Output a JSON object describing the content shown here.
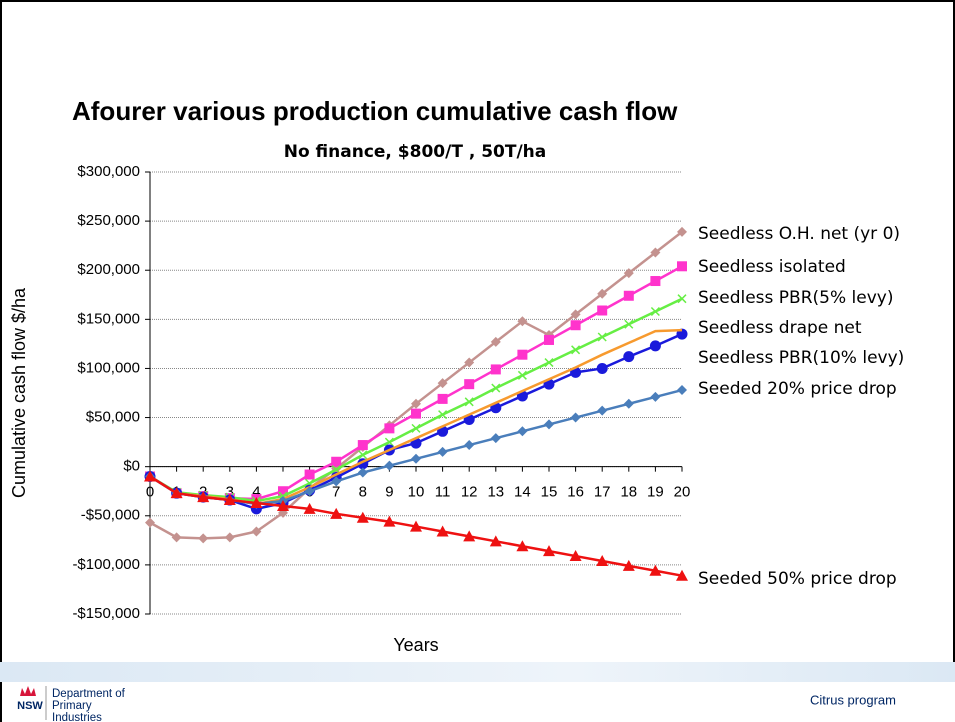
{
  "chart_data": {
    "type": "line",
    "title": "Afourer various production cumulative cash flow",
    "subtitle": "No finance, $800/T , 50T/ha",
    "xlabel": "Years",
    "ylabel": "Cumulative  cash flow $/ha",
    "x": [
      0,
      1,
      2,
      3,
      4,
      5,
      6,
      7,
      8,
      9,
      10,
      11,
      12,
      13,
      14,
      15,
      16,
      17,
      18,
      19,
      20
    ],
    "xlim": [
      0,
      20
    ],
    "xticks": [
      0,
      1,
      2,
      3,
      4,
      5,
      6,
      7,
      8,
      9,
      10,
      11,
      12,
      13,
      14,
      15,
      16,
      17,
      18,
      19,
      20
    ],
    "ylim": [
      -150000,
      300000
    ],
    "yticks": [
      {
        "value": -150000,
        "label": "-$150,000"
      },
      {
        "value": -100000,
        "label": "-$100,000"
      },
      {
        "value": -50000,
        "label": "-$50,000"
      },
      {
        "value": 0,
        "label": "$0"
      },
      {
        "value": 50000,
        "label": "$50,000"
      },
      {
        "value": 100000,
        "label": "$100,000"
      },
      {
        "value": 150000,
        "label": "$150,000"
      },
      {
        "value": 200000,
        "label": "$200,000"
      },
      {
        "value": 250000,
        "label": "$250,000"
      },
      {
        "value": 300000,
        "label": "$300,000"
      }
    ],
    "grid": true,
    "series": [
      {
        "name": "Seedless O.H. net (yr 0)",
        "color": "#c4928f",
        "marker": "diamond",
        "values": [
          -57000,
          -72000,
          -73000,
          -72000,
          -66000,
          -47000,
          -22000,
          -2000,
          20000,
          42000,
          64000,
          85000,
          106000,
          127000,
          148000,
          134000,
          155000,
          176000,
          197000,
          218000,
          239000
        ]
      },
      {
        "name": "Seedless isolated",
        "color": "#ff33cc",
        "marker": "square",
        "values": [
          -10000,
          -27000,
          -30000,
          -32000,
          -33000,
          -25000,
          -8000,
          5000,
          22000,
          39000,
          54000,
          69000,
          84000,
          99000,
          114000,
          129000,
          144000,
          159000,
          174000,
          189000,
          204000
        ]
      },
      {
        "name": "Seedless PBR(5% levy)",
        "color": "#66ee44",
        "marker": "x",
        "values": [
          -10000,
          -26000,
          -29000,
          -31000,
          -35000,
          -30000,
          -17000,
          -3000,
          12000,
          25000,
          39000,
          53000,
          66000,
          80000,
          93000,
          106000,
          119000,
          132000,
          145000,
          158000,
          171000
        ]
      },
      {
        "name": "Seedless drape net",
        "color": "#1a1adb",
        "marker": "circle",
        "values": [
          -10000,
          -27000,
          -31000,
          -34000,
          -43000,
          -37000,
          -24000,
          -11000,
          3000,
          17000,
          24000,
          36000,
          48000,
          60000,
          72000,
          84000,
          96000,
          100000,
          112000,
          123000,
          135000
        ]
      },
      {
        "name": "Seedless PBR(10% levy)",
        "color": "#f79a2e",
        "marker": "none",
        "values": [
          -10000,
          -27000,
          -30000,
          -33000,
          -38000,
          -33000,
          -21000,
          -8000,
          5000,
          17000,
          29000,
          41000,
          53000,
          65000,
          77000,
          89000,
          101000,
          114000,
          126000,
          138000,
          139000
        ]
      },
      {
        "name": "Seeded 20% price drop",
        "color": "#4a7ebb",
        "marker": "diamond",
        "values": [
          -10000,
          -27000,
          -31000,
          -34000,
          -38000,
          -35000,
          -25000,
          -15000,
          -6000,
          1000,
          8000,
          15000,
          22000,
          29000,
          36000,
          43000,
          50000,
          57000,
          64000,
          71000,
          78000
        ]
      },
      {
        "name": "Seeded 50% price drop",
        "color": "#ee1111",
        "marker": "triangle",
        "values": [
          -10000,
          -27000,
          -31000,
          -34000,
          -37000,
          -40000,
          -43000,
          -48000,
          -52000,
          -56000,
          -61000,
          -66000,
          -71000,
          -76000,
          -81000,
          -86000,
          -91000,
          -96000,
          -101000,
          -106000,
          -111000
        ]
      }
    ]
  },
  "footer": {
    "logo": "NSW",
    "department": "Department of Primary Industries",
    "program": "Citrus program"
  }
}
